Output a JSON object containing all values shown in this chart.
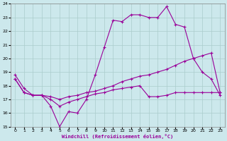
{
  "xlabel": "Windchill (Refroidissement éolien,°C)",
  "xlim": [
    -0.5,
    23.5
  ],
  "ylim": [
    15,
    24
  ],
  "yticks": [
    15,
    16,
    17,
    18,
    19,
    20,
    21,
    22,
    23,
    24
  ],
  "xticks": [
    0,
    1,
    2,
    3,
    4,
    5,
    6,
    7,
    8,
    9,
    10,
    11,
    12,
    13,
    14,
    15,
    16,
    17,
    18,
    19,
    20,
    21,
    22,
    23
  ],
  "bg_color": "#cce8ec",
  "grid_color": "#aacccc",
  "line_color": "#990099",
  "line1_x": [
    0,
    1,
    2,
    3,
    4,
    5,
    6,
    7,
    8,
    9,
    10,
    11,
    12,
    13,
    14,
    15,
    16,
    17,
    18,
    19,
    20,
    21,
    22,
    23
  ],
  "line1_y": [
    18.8,
    17.8,
    17.3,
    17.3,
    16.5,
    15.0,
    16.1,
    16.0,
    17.0,
    18.8,
    20.8,
    22.8,
    22.7,
    23.2,
    23.2,
    23.0,
    23.0,
    23.8,
    22.5,
    22.3,
    20.0,
    19.0,
    18.5,
    17.3
  ],
  "line2_x": [
    0,
    1,
    2,
    3,
    4,
    5,
    6,
    7,
    8,
    9,
    10,
    11,
    12,
    13,
    14,
    15,
    16,
    17,
    18,
    19,
    20,
    21,
    22,
    23
  ],
  "line2_y": [
    18.5,
    17.5,
    17.3,
    17.3,
    17.2,
    17.0,
    17.2,
    17.3,
    17.5,
    17.6,
    17.8,
    18.0,
    18.3,
    18.5,
    18.7,
    18.8,
    19.0,
    19.2,
    19.5,
    19.8,
    20.0,
    20.2,
    20.4,
    17.5
  ],
  "line3_x": [
    0,
    1,
    2,
    3,
    4,
    5,
    6,
    7,
    8,
    9,
    10,
    11,
    12,
    13,
    14,
    15,
    16,
    17,
    18,
    19,
    20,
    21,
    22,
    23
  ],
  "line3_y": [
    18.5,
    17.5,
    17.3,
    17.3,
    17.0,
    16.5,
    16.8,
    17.0,
    17.2,
    17.4,
    17.5,
    17.7,
    17.8,
    17.9,
    18.0,
    17.2,
    17.2,
    17.3,
    17.5,
    17.5,
    17.5,
    17.5,
    17.5,
    17.5
  ]
}
